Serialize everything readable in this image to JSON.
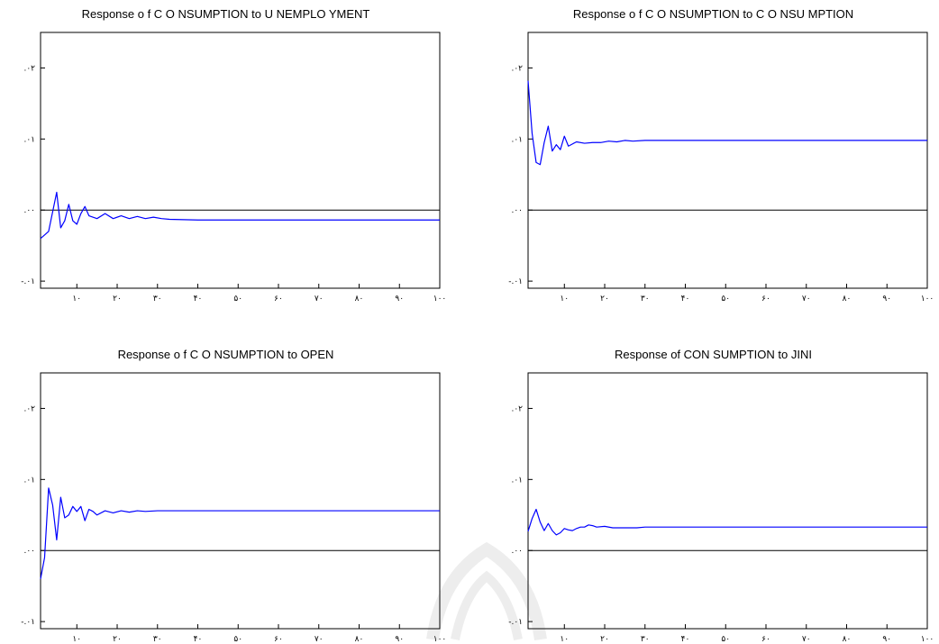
{
  "chart_data": [
    {
      "type": "line",
      "title": "Response o f C O NSUMPTION  to  U NEMPLO YMENT",
      "x_tick_labels": [
        "۱۰",
        "۲۰",
        "۳۰",
        "۴۰",
        "۵۰",
        "۶۰",
        "۷۰",
        "۸۰",
        "۹۰",
        "۱۰۰"
      ],
      "y_tick_labels": [
        ".۰۲",
        ".۰۱",
        ".۰۰",
        "-.۰۱"
      ],
      "xlim": [
        1,
        100
      ],
      "ylim": [
        -0.011,
        0.025
      ],
      "ylabel": "",
      "xlabel": "",
      "grid": false,
      "series": [
        {
          "color": "#0000ff",
          "x": [
            1,
            3,
            5,
            6,
            7,
            8,
            9,
            10,
            11,
            12,
            13,
            15,
            17,
            19,
            21,
            23,
            25,
            27,
            29,
            31,
            33,
            40,
            100
          ],
          "y": [
            -0.004,
            -0.003,
            0.0025,
            -0.0025,
            -0.0015,
            0.0008,
            -0.0015,
            -0.002,
            -0.0005,
            0.0005,
            -0.0008,
            -0.0012,
            -0.0005,
            -0.0012,
            -0.0008,
            -0.0012,
            -0.0009,
            -0.0012,
            -0.001,
            -0.0012,
            -0.0013,
            -0.0014,
            -0.0014
          ]
        }
      ]
    },
    {
      "type": "line",
      "title": "Response o f C O NSUMPTION  to  C O NSU MPTION",
      "x_tick_labels": [
        "۱۰",
        "۲۰",
        "۳۰",
        "۴۰",
        "۵۰",
        "۶۰",
        "۷۰",
        "۸۰",
        "۹۰",
        "۱۰۰"
      ],
      "y_tick_labels": [
        ".۰۲",
        ".۰۱",
        ".۰۰",
        "-.۰۱"
      ],
      "xlim": [
        1,
        100
      ],
      "ylim": [
        -0.011,
        0.025
      ],
      "ylabel": "",
      "xlabel": "",
      "grid": false,
      "series": [
        {
          "color": "#0000ff",
          "x": [
            1,
            2,
            3,
            4,
            5,
            6,
            7,
            8,
            9,
            10,
            11,
            12,
            13,
            15,
            17,
            19,
            21,
            23,
            25,
            27,
            30,
            100
          ],
          "y": [
            0.0182,
            0.0108,
            0.0067,
            0.0064,
            0.0095,
            0.0118,
            0.0083,
            0.0092,
            0.0085,
            0.0104,
            0.009,
            0.0093,
            0.0096,
            0.0094,
            0.0095,
            0.0095,
            0.0097,
            0.0096,
            0.0098,
            0.0097,
            0.0098,
            0.0098
          ]
        }
      ]
    },
    {
      "type": "line",
      "title": "Response o f C O NSUMPTION  to  OPEN",
      "x_tick_labels": [
        "۱۰",
        "۲۰",
        "۳۰",
        "۴۰",
        "۵۰",
        "۶۰",
        "۷۰",
        "۸۰",
        "۹۰",
        "۱۰۰"
      ],
      "y_tick_labels": [
        ".۰۲",
        ".۰۱",
        ".۰۰",
        "-.۰۱"
      ],
      "xlim": [
        1,
        100
      ],
      "ylim": [
        -0.011,
        0.025
      ],
      "ylabel": "",
      "xlabel": "",
      "grid": false,
      "series": [
        {
          "color": "#0000ff",
          "x": [
            1,
            2,
            3,
            4,
            5,
            6,
            7,
            8,
            9,
            10,
            11,
            12,
            13,
            14,
            15,
            17,
            19,
            21,
            23,
            25,
            27,
            30,
            100
          ],
          "y": [
            -0.004,
            -0.001,
            0.0088,
            0.0064,
            0.0015,
            0.0075,
            0.0046,
            0.005,
            0.0062,
            0.0055,
            0.0062,
            0.0042,
            0.0058,
            0.0055,
            0.005,
            0.0056,
            0.0053,
            0.0056,
            0.0054,
            0.0056,
            0.0055,
            0.0056,
            0.0056
          ]
        }
      ]
    },
    {
      "type": "line",
      "title": "Response of CON SUMPTION  to JINI",
      "x_tick_labels": [
        "۱۰",
        "۲۰",
        "۳۰",
        "۴۰",
        "۵۰",
        "۶۰",
        "۷۰",
        "۸۰",
        "۹۰",
        "۱۰۰"
      ],
      "y_tick_labels": [
        ".۰۲",
        ".۰۱",
        ".۰۰",
        "-.۰۱"
      ],
      "xlim": [
        1,
        100
      ],
      "ylim": [
        -0.011,
        0.025
      ],
      "ylabel": "",
      "xlabel": "",
      "grid": false,
      "series": [
        {
          "color": "#0000ff",
          "x": [
            1,
            2,
            3,
            4,
            5,
            6,
            7,
            8,
            9,
            10,
            11,
            12,
            13,
            14,
            15,
            16,
            17,
            18,
            20,
            22,
            25,
            28,
            30,
            100
          ],
          "y": [
            0.0027,
            0.0045,
            0.0058,
            0.004,
            0.0028,
            0.0038,
            0.0028,
            0.0022,
            0.0025,
            0.0031,
            0.0029,
            0.0028,
            0.0031,
            0.0033,
            0.0033,
            0.0036,
            0.0035,
            0.0033,
            0.0034,
            0.0032,
            0.0032,
            0.0032,
            0.0033,
            0.0033
          ]
        }
      ]
    }
  ],
  "colors": {
    "series": "#0000ff",
    "axis": "#000000",
    "zero_line": "#000000",
    "background": "#ffffff"
  }
}
